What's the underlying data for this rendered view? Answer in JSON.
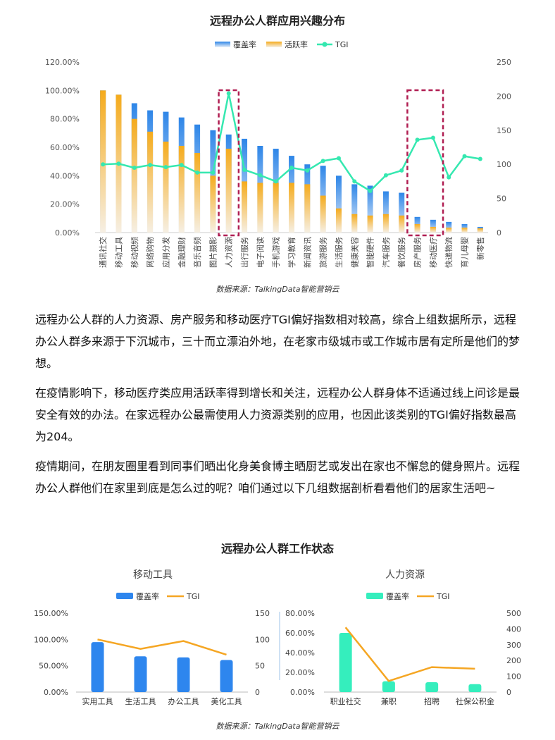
{
  "chart_data": [
    {
      "type": "bar",
      "title": "远程办公人群应用兴趣分布",
      "legend": [
        "覆盖率",
        "活跃率",
        "TGI"
      ],
      "legend_position": "top",
      "categories": [
        "通讯社交",
        "移动工具",
        "移动视频",
        "网络购物",
        "应用分发",
        "金融理财",
        "音乐音频",
        "图片摄影",
        "人力资源",
        "出行服务",
        "电子阅读",
        "手机游戏",
        "学习教育",
        "新闻资讯",
        "旅游服务",
        "生活服务",
        "健康美容",
        "智能硬件",
        "汽车服务",
        "餐饮服务",
        "房产服务",
        "移动医疗",
        "快递物流",
        "育儿母婴",
        "新零售"
      ],
      "series": [
        {
          "name": "覆盖率",
          "axis": "left",
          "values": [
            100,
            97,
            91,
            86,
            85,
            81,
            76,
            72,
            69,
            66,
            61,
            59,
            54,
            48,
            47,
            40,
            34,
            33,
            29,
            28,
            11,
            9,
            7.5,
            6,
            4
          ]
        },
        {
          "name": "活跃率",
          "axis": "left",
          "values": [
            100,
            97,
            80,
            71,
            64,
            61,
            56,
            40,
            59,
            36,
            35,
            35,
            35,
            34,
            26,
            17,
            13,
            12,
            13,
            12,
            6,
            4,
            3.5,
            3.5,
            3
          ]
        },
        {
          "name": "TGI",
          "axis": "right",
          "values": [
            100,
            101,
            95,
            99,
            96,
            99,
            88,
            88,
            204,
            92,
            84,
            75,
            95,
            91,
            105,
            109,
            75,
            61,
            84,
            91,
            136,
            139,
            81,
            112,
            108
          ]
        }
      ],
      "ylim_left": [
        0,
        120
      ],
      "ylim_right": [
        0,
        250
      ],
      "left_ticks": [
        "0.00%",
        "20.00%",
        "40.00%",
        "60.00%",
        "80.00%",
        "100.00%",
        "120.00%"
      ],
      "right_ticks": [
        "0",
        "50",
        "100",
        "150",
        "200",
        "250"
      ],
      "highlighted_categories": [
        "人力资源",
        "房产服务",
        "移动医疗"
      ]
    },
    {
      "type": "bar",
      "title": "移动工具",
      "legend": [
        "覆盖率",
        "TGI"
      ],
      "categories": [
        "实用工具",
        "生活工具",
        "办公工具",
        "美化工具"
      ],
      "series": [
        {
          "name": "覆盖率",
          "axis": "left",
          "values": [
            95,
            68,
            66,
            61
          ]
        },
        {
          "name": "TGI",
          "axis": "right",
          "values": [
            100,
            82,
            97,
            71
          ]
        }
      ],
      "ylim_left": [
        0,
        150
      ],
      "ylim_right": [
        0,
        150
      ],
      "left_ticks": [
        "0.00%",
        "50.00%",
        "100.00%",
        "150.00%"
      ],
      "right_ticks": [
        "0",
        "50",
        "100",
        "150"
      ]
    },
    {
      "type": "bar",
      "title": "人力资源",
      "legend": [
        "覆盖率",
        "TGI"
      ],
      "categories": [
        "职业社交",
        "兼职",
        "招聘",
        "社保公积金"
      ],
      "series": [
        {
          "name": "覆盖率",
          "axis": "left",
          "values": [
            60,
            11,
            10,
            8
          ]
        },
        {
          "name": "TGI",
          "axis": "right",
          "values": [
            410,
            70,
            158,
            148
          ]
        }
      ],
      "ylim_left": [
        0,
        80
      ],
      "ylim_right": [
        0,
        500
      ],
      "left_ticks": [
        "0.00%",
        "20.00%",
        "40.00%",
        "60.00%",
        "80.00%"
      ],
      "right_ticks": [
        "0",
        "100",
        "200",
        "300",
        "400",
        "500"
      ]
    }
  ],
  "top_chart_title": "远程办公人群应用兴趣分布",
  "bottom_title": "远程办公人群工作状态",
  "source_text": "数据来源：TalkingData智能营销云",
  "paragraphs": [
    "远程办公人群的人力资源、房产服务和移动医疗TGI偏好指数相对较高，综合上组数据所示，远程办公人群多来源于下沉城市，三十而立漂泊外地，在老家市级城市或工作城市居有定所是他们的梦想。",
    "在疫情影响下，移动医疗类应用活跃率得到增长和关注，远程办公人群身体不适通过线上问诊是最安全有效的办法。在家远程办公最需使用人力资源类别的应用，也因此该类别的TGI偏好指数最高为204。",
    "疫情期间，在朋友圈里看到同事们晒出化身美食博主晒厨艺或发出在家也不懈怠的健身照片。远程办公人群他们在家里到底是怎么过的呢？咱们通过以下几组数据剖析看看他们的居家生活吧~"
  ],
  "colors": {
    "coverage_top": "#2e86e8",
    "coverage_bottom": "#e8eef8",
    "active_top": "#f5ab1c",
    "active_bottom": "#f6efe3",
    "tgi": "#35e8b0",
    "tool_bar": "#2e86ee",
    "tool_line": "#f5a623",
    "hr_bar": "#35eebd",
    "hr_line": "#f5a623",
    "highlight_box": "#b01e52"
  }
}
